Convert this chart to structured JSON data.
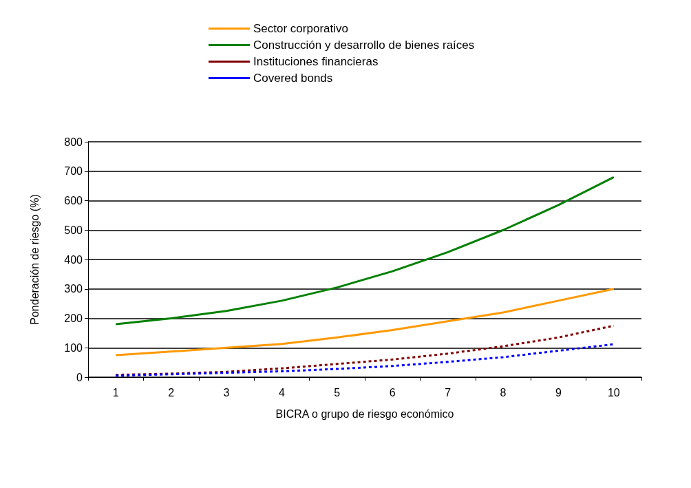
{
  "chart_data": {
    "type": "line",
    "xlabel": "BICRA o grupo de riesgo económico",
    "ylabel": "Ponderación de riesgo (%)",
    "categories": [
      "1",
      "2",
      "3",
      "4",
      "5",
      "6",
      "7",
      "8",
      "9",
      "10"
    ],
    "series": [
      {
        "name": "Sector corporativo",
        "color": "#ff9900",
        "line_style": "solid",
        "values": [
          75,
          87,
          100,
          113,
          135,
          160,
          190,
          220,
          260,
          300
        ]
      },
      {
        "name": "Construcción y desarrollo de bienes raíces",
        "color": "#008000",
        "line_style": "solid",
        "values": [
          180,
          200,
          225,
          260,
          305,
          360,
          425,
          500,
          585,
          680
        ]
      },
      {
        "name": "Instituciones financieras",
        "color": "#800000",
        "line_style": "dashed",
        "values": [
          8,
          12,
          18,
          30,
          45,
          60,
          80,
          105,
          135,
          175
        ]
      },
      {
        "name": "Covered bonds",
        "color": "#0000ff",
        "line_style": "dashed",
        "values": [
          5,
          10,
          15,
          20,
          28,
          38,
          52,
          68,
          90,
          112
        ]
      }
    ],
    "ylim": [
      0,
      800
    ],
    "yticks": [
      0,
      100,
      200,
      300,
      400,
      500,
      600,
      700,
      800
    ],
    "grid": "y",
    "legend": "top",
    "marker": "none"
  }
}
